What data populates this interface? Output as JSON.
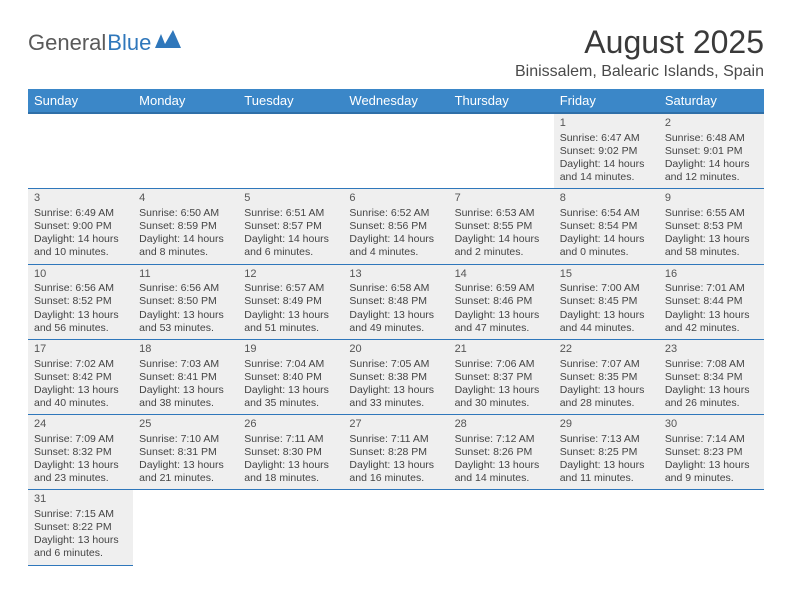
{
  "logo": {
    "word1": "General",
    "word2": "Blue"
  },
  "title": "August 2025",
  "location": "Binissalem, Balearic Islands, Spain",
  "colors": {
    "header_bg": "#3b87c8",
    "header_border": "#2f6fa8",
    "row_bg": "#efefef",
    "cell_border": "#2f77bb",
    "logo_gray": "#5a5a5a",
    "logo_blue": "#2f77bb"
  },
  "day_headers": [
    "Sunday",
    "Monday",
    "Tuesday",
    "Wednesday",
    "Thursday",
    "Friday",
    "Saturday"
  ],
  "weeks": [
    [
      null,
      null,
      null,
      null,
      null,
      {
        "n": "1",
        "sr": "Sunrise: 6:47 AM",
        "ss": "Sunset: 9:02 PM",
        "dl": "Daylight: 14 hours and 14 minutes."
      },
      {
        "n": "2",
        "sr": "Sunrise: 6:48 AM",
        "ss": "Sunset: 9:01 PM",
        "dl": "Daylight: 14 hours and 12 minutes."
      }
    ],
    [
      {
        "n": "3",
        "sr": "Sunrise: 6:49 AM",
        "ss": "Sunset: 9:00 PM",
        "dl": "Daylight: 14 hours and 10 minutes."
      },
      {
        "n": "4",
        "sr": "Sunrise: 6:50 AM",
        "ss": "Sunset: 8:59 PM",
        "dl": "Daylight: 14 hours and 8 minutes."
      },
      {
        "n": "5",
        "sr": "Sunrise: 6:51 AM",
        "ss": "Sunset: 8:57 PM",
        "dl": "Daylight: 14 hours and 6 minutes."
      },
      {
        "n": "6",
        "sr": "Sunrise: 6:52 AM",
        "ss": "Sunset: 8:56 PM",
        "dl": "Daylight: 14 hours and 4 minutes."
      },
      {
        "n": "7",
        "sr": "Sunrise: 6:53 AM",
        "ss": "Sunset: 8:55 PM",
        "dl": "Daylight: 14 hours and 2 minutes."
      },
      {
        "n": "8",
        "sr": "Sunrise: 6:54 AM",
        "ss": "Sunset: 8:54 PM",
        "dl": "Daylight: 14 hours and 0 minutes."
      },
      {
        "n": "9",
        "sr": "Sunrise: 6:55 AM",
        "ss": "Sunset: 8:53 PM",
        "dl": "Daylight: 13 hours and 58 minutes."
      }
    ],
    [
      {
        "n": "10",
        "sr": "Sunrise: 6:56 AM",
        "ss": "Sunset: 8:52 PM",
        "dl": "Daylight: 13 hours and 56 minutes."
      },
      {
        "n": "11",
        "sr": "Sunrise: 6:56 AM",
        "ss": "Sunset: 8:50 PM",
        "dl": "Daylight: 13 hours and 53 minutes."
      },
      {
        "n": "12",
        "sr": "Sunrise: 6:57 AM",
        "ss": "Sunset: 8:49 PM",
        "dl": "Daylight: 13 hours and 51 minutes."
      },
      {
        "n": "13",
        "sr": "Sunrise: 6:58 AM",
        "ss": "Sunset: 8:48 PM",
        "dl": "Daylight: 13 hours and 49 minutes."
      },
      {
        "n": "14",
        "sr": "Sunrise: 6:59 AM",
        "ss": "Sunset: 8:46 PM",
        "dl": "Daylight: 13 hours and 47 minutes."
      },
      {
        "n": "15",
        "sr": "Sunrise: 7:00 AM",
        "ss": "Sunset: 8:45 PM",
        "dl": "Daylight: 13 hours and 44 minutes."
      },
      {
        "n": "16",
        "sr": "Sunrise: 7:01 AM",
        "ss": "Sunset: 8:44 PM",
        "dl": "Daylight: 13 hours and 42 minutes."
      }
    ],
    [
      {
        "n": "17",
        "sr": "Sunrise: 7:02 AM",
        "ss": "Sunset: 8:42 PM",
        "dl": "Daylight: 13 hours and 40 minutes."
      },
      {
        "n": "18",
        "sr": "Sunrise: 7:03 AM",
        "ss": "Sunset: 8:41 PM",
        "dl": "Daylight: 13 hours and 38 minutes."
      },
      {
        "n": "19",
        "sr": "Sunrise: 7:04 AM",
        "ss": "Sunset: 8:40 PM",
        "dl": "Daylight: 13 hours and 35 minutes."
      },
      {
        "n": "20",
        "sr": "Sunrise: 7:05 AM",
        "ss": "Sunset: 8:38 PM",
        "dl": "Daylight: 13 hours and 33 minutes."
      },
      {
        "n": "21",
        "sr": "Sunrise: 7:06 AM",
        "ss": "Sunset: 8:37 PM",
        "dl": "Daylight: 13 hours and 30 minutes."
      },
      {
        "n": "22",
        "sr": "Sunrise: 7:07 AM",
        "ss": "Sunset: 8:35 PM",
        "dl": "Daylight: 13 hours and 28 minutes."
      },
      {
        "n": "23",
        "sr": "Sunrise: 7:08 AM",
        "ss": "Sunset: 8:34 PM",
        "dl": "Daylight: 13 hours and 26 minutes."
      }
    ],
    [
      {
        "n": "24",
        "sr": "Sunrise: 7:09 AM",
        "ss": "Sunset: 8:32 PM",
        "dl": "Daylight: 13 hours and 23 minutes."
      },
      {
        "n": "25",
        "sr": "Sunrise: 7:10 AM",
        "ss": "Sunset: 8:31 PM",
        "dl": "Daylight: 13 hours and 21 minutes."
      },
      {
        "n": "26",
        "sr": "Sunrise: 7:11 AM",
        "ss": "Sunset: 8:30 PM",
        "dl": "Daylight: 13 hours and 18 minutes."
      },
      {
        "n": "27",
        "sr": "Sunrise: 7:11 AM",
        "ss": "Sunset: 8:28 PM",
        "dl": "Daylight: 13 hours and 16 minutes."
      },
      {
        "n": "28",
        "sr": "Sunrise: 7:12 AM",
        "ss": "Sunset: 8:26 PM",
        "dl": "Daylight: 13 hours and 14 minutes."
      },
      {
        "n": "29",
        "sr": "Sunrise: 7:13 AM",
        "ss": "Sunset: 8:25 PM",
        "dl": "Daylight: 13 hours and 11 minutes."
      },
      {
        "n": "30",
        "sr": "Sunrise: 7:14 AM",
        "ss": "Sunset: 8:23 PM",
        "dl": "Daylight: 13 hours and 9 minutes."
      }
    ],
    [
      {
        "n": "31",
        "sr": "Sunrise: 7:15 AM",
        "ss": "Sunset: 8:22 PM",
        "dl": "Daylight: 13 hours and 6 minutes."
      },
      null,
      null,
      null,
      null,
      null,
      null
    ]
  ]
}
